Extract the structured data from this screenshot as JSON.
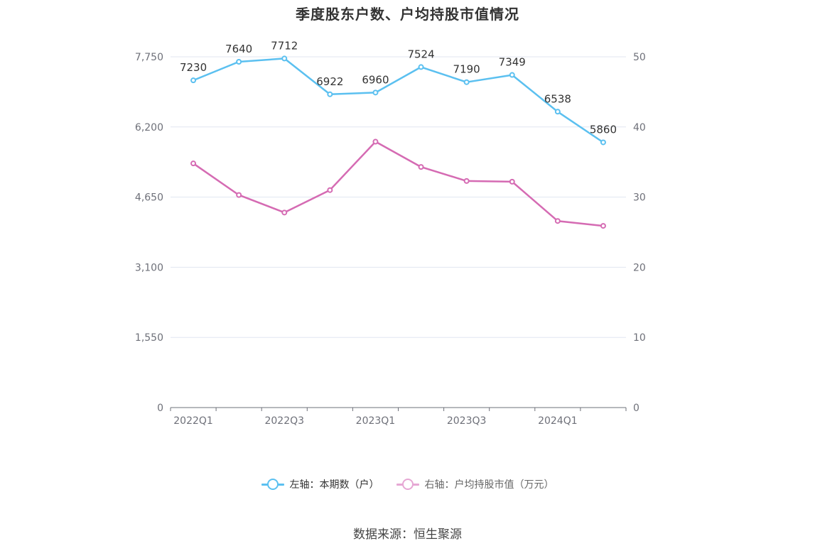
{
  "title": "季度股东户数、户均持股市值情况",
  "source": "数据来源：恒生聚源",
  "legend": {
    "left": "左轴：本期数（户）",
    "right": "右轴：户均持股市值（万元）"
  },
  "colors": {
    "left_series": "#5bc0f0",
    "right_series": "#d56bb3",
    "grid": "#e0e6f1",
    "axis": "#6e7079"
  },
  "chart_data": {
    "type": "line",
    "x": [
      "2022Q1",
      "2022Q2",
      "2022Q3",
      "2022Q4",
      "2023Q1",
      "2023Q2",
      "2023Q3",
      "2023Q4",
      "2024Q1",
      "2024Q2"
    ],
    "x_tick_labels": [
      "2022Q1",
      "2022Q3",
      "2023Q1",
      "2023Q3",
      "2024Q1"
    ],
    "y_left": {
      "ticks": [
        "0",
        "1,550",
        "3,100",
        "4,650",
        "6,200",
        "7,750"
      ],
      "range": [
        0,
        7750
      ]
    },
    "y_right": {
      "ticks": [
        "0",
        "10",
        "20",
        "30",
        "40",
        "50"
      ],
      "range": [
        0,
        50
      ]
    },
    "series": [
      {
        "name": "左轴：本期数（户）",
        "axis": "left",
        "values": [
          7230,
          7640,
          7712,
          6922,
          6960,
          7524,
          7190,
          7349,
          6538,
          5860
        ],
        "show_labels": true
      },
      {
        "name": "右轴：户均持股市值（万元）",
        "axis": "right",
        "values": [
          34.8,
          30.3,
          27.8,
          31.0,
          37.9,
          34.3,
          32.3,
          32.2,
          26.6,
          25.9
        ],
        "show_labels": false
      }
    ],
    "grid": true,
    "legend_position": "bottom-center"
  }
}
